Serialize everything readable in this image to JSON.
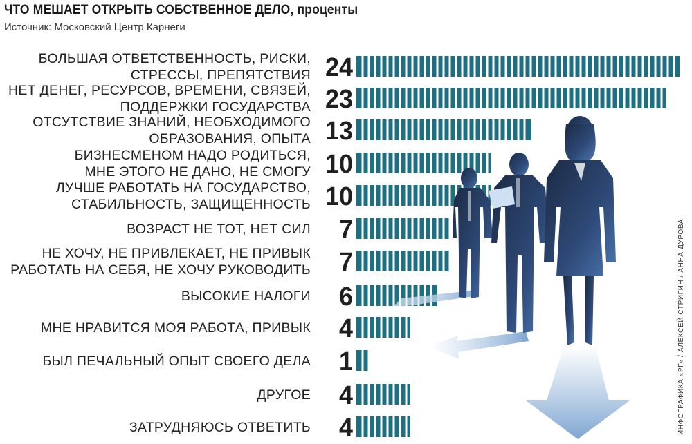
{
  "header": {
    "title": "ЧТО МЕШАЕТ ОТКРЫТЬ СОБСТВЕННОЕ ДЕЛО, проценты",
    "source": "Источник: Московский Центр Карнеги"
  },
  "credit": "ИНФОГРАФИКА «РГ» / АЛЕКСЕЙ СТРИГИН / АННА ДУРОВА",
  "colors": {
    "bar": "#1f6f82",
    "bar_stripe": "#ffffff",
    "silhouette_dark": "#1c2a44",
    "silhouette_mid": "#3f5f94",
    "shadow": "#8fb3d8"
  },
  "chart_data": {
    "type": "bar",
    "orientation": "horizontal",
    "categories": [
      [
        "БОЛЬШАЯ ОТВЕТСТВЕННОСТЬ, РИСКИ,",
        "СТРЕССЫ, ПРЕПЯТСТВИЯ"
      ],
      [
        "НЕТ ДЕНЕГ, РЕСУРСОВ, ВРЕМЕНИ, СВЯЗЕЙ,",
        "ПОДДЕРЖКИ ГОСУДАРСТВА"
      ],
      [
        "ОТСУТСТВИЕ ЗНАНИЙ, НЕОБХОДИМОГО",
        "ОБРАЗОВАНИЯ, ОПЫТА"
      ],
      [
        "БИЗНЕСМЕНОМ НАДО РОДИТЬСЯ,",
        "МНЕ ЭТОГО НЕ ДАНО, НЕ СМОГУ"
      ],
      [
        "ЛУЧШЕ РАБОТАТЬ НА ГОСУДАРСТВО,",
        "СТАБИЛЬНОСТЬ, ЗАЩИЩЕННОСТЬ"
      ],
      [
        "ВОЗРАСТ НЕ ТОТ, НЕТ СИЛ"
      ],
      [
        "НЕ ХОЧУ, НЕ ПРИВЛЕКАЕТ, НЕ ПРИВЫК",
        "РАБОТАТЬ НА СЕБЯ, НЕ ХОЧУ РУКОВОДИТЬ"
      ],
      [
        "ВЫСОКИЕ НАЛОГИ"
      ],
      [
        "МНЕ НРАВИТСЯ МОЯ РАБОТА, ПРИВЫК"
      ],
      [
        "БЫЛ ПЕЧАЛЬНЫЙ ОПЫТ СВОЕГО ДЕЛА"
      ],
      [
        "ДРУГОЕ"
      ],
      [
        "ЗАТРУДНЯЮСЬ ОТВЕТИТЬ"
      ]
    ],
    "values": [
      24,
      23,
      13,
      10,
      10,
      7,
      7,
      6,
      4,
      1,
      4,
      4
    ],
    "title": "ЧТО МЕШАЕТ ОТКРЫТЬ СОБСТВЕННОЕ ДЕЛО, проценты",
    "unit": "проценты",
    "xlim": [
      0,
      24
    ],
    "grid": false,
    "legend": "none"
  }
}
